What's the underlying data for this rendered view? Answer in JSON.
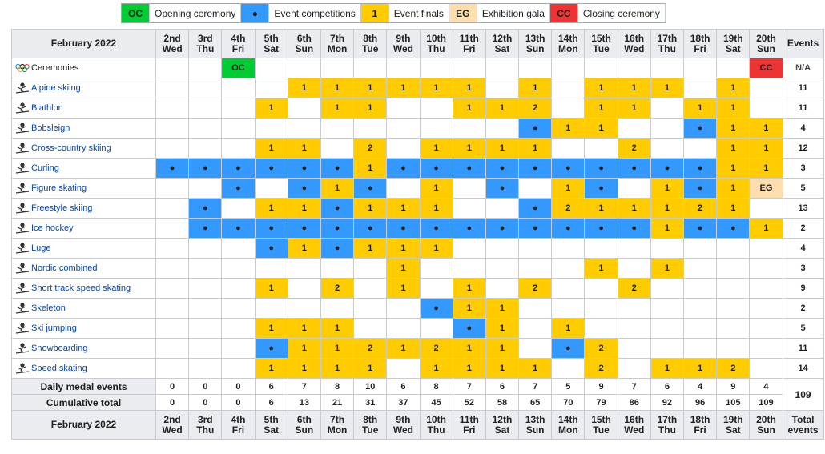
{
  "legend": [
    {
      "code": "OC",
      "text": "Opening ceremony",
      "color": "#00cc33"
    },
    {
      "code": "●",
      "text": "Event competitions",
      "color": "#3399ff"
    },
    {
      "code": "1",
      "text": "Event finals",
      "color": "#ffcc00"
    },
    {
      "code": "EG",
      "text": "Exhibition gala",
      "color": "#ffdead"
    },
    {
      "code": "CC",
      "text": "Closing ceremony",
      "color": "#ee3333"
    }
  ],
  "header": {
    "month_label": "February 2022",
    "events_label": "Events",
    "footer_events_label": "Total events",
    "days": [
      {
        "date": "2nd",
        "day": "Wed"
      },
      {
        "date": "3rd",
        "day": "Thu"
      },
      {
        "date": "4th",
        "day": "Fri"
      },
      {
        "date": "5th",
        "day": "Sat"
      },
      {
        "date": "6th",
        "day": "Sun"
      },
      {
        "date": "7th",
        "day": "Mon"
      },
      {
        "date": "8th",
        "day": "Tue"
      },
      {
        "date": "9th",
        "day": "Wed"
      },
      {
        "date": "10th",
        "day": "Thu"
      },
      {
        "date": "11th",
        "day": "Fri"
      },
      {
        "date": "12th",
        "day": "Sat"
      },
      {
        "date": "13th",
        "day": "Sun"
      },
      {
        "date": "14th",
        "day": "Mon"
      },
      {
        "date": "15th",
        "day": "Tue"
      },
      {
        "date": "16th",
        "day": "Wed"
      },
      {
        "date": "17th",
        "day": "Thu"
      },
      {
        "date": "18th",
        "day": "Fri"
      },
      {
        "date": "19th",
        "day": "Sat"
      },
      {
        "date": "20th",
        "day": "Sun"
      }
    ]
  },
  "rows": [
    {
      "sport": "Ceremonies",
      "icon": "olympic-rings-icon",
      "link": false,
      "cells": [
        "",
        "",
        "OC",
        "",
        "",
        "",
        "",
        "",
        "",
        "",
        "",
        "",
        "",
        "",
        "",
        "",
        "",
        "",
        "CC"
      ],
      "total": "N/A"
    },
    {
      "sport": "Alpine skiing",
      "icon": "alpine-skiing-icon",
      "link": true,
      "cells": [
        "",
        "",
        "",
        "",
        "1",
        "1",
        "1",
        "1",
        "1",
        "1",
        "",
        "1",
        "",
        "1",
        "1",
        "1",
        "",
        "1",
        ""
      ],
      "total": "11"
    },
    {
      "sport": "Biathlon",
      "icon": "biathlon-icon",
      "link": true,
      "cells": [
        "",
        "",
        "",
        "1",
        "",
        "1",
        "1",
        "",
        "",
        "1",
        "1",
        "2",
        "",
        "1",
        "1",
        "",
        "1",
        "1",
        ""
      ],
      "total": "11"
    },
    {
      "sport": "Bobsleigh",
      "icon": "bobsleigh-icon",
      "link": true,
      "cells": [
        "",
        "",
        "",
        "",
        "",
        "",
        "",
        "",
        "",
        "",
        "",
        "●",
        "1",
        "1",
        "",
        "",
        "●",
        "1",
        "1"
      ],
      "total": "4"
    },
    {
      "sport": "Cross-country skiing",
      "icon": "cross-country-skiing-icon",
      "link": true,
      "cells": [
        "",
        "",
        "",
        "1",
        "1",
        "",
        "2",
        "",
        "1",
        "1",
        "1",
        "1",
        "",
        "",
        "2",
        "",
        "",
        "1",
        "1"
      ],
      "total": "12"
    },
    {
      "sport": "Curling",
      "icon": "curling-icon",
      "link": true,
      "cells": [
        "●",
        "●",
        "●",
        "●",
        "●",
        "●",
        "1",
        "●",
        "●",
        "●",
        "●",
        "●",
        "●",
        "●",
        "●",
        "●",
        "●",
        "1",
        "1"
      ],
      "total": "3"
    },
    {
      "sport": "Figure skating",
      "icon": "figure-skating-icon",
      "link": true,
      "cells": [
        "",
        "",
        "●",
        "",
        "●",
        "1",
        "●",
        "",
        "1",
        "",
        "●",
        "",
        "1",
        "●",
        "",
        "1",
        "●",
        "1",
        "EG"
      ],
      "total": "5"
    },
    {
      "sport": "Freestyle skiing",
      "icon": "freestyle-skiing-icon",
      "link": true,
      "cells": [
        "",
        "●",
        "",
        "1",
        "1",
        "●",
        "1",
        "1",
        "1",
        "",
        "",
        "●",
        "2",
        "1",
        "1",
        "1",
        "2",
        "1",
        ""
      ],
      "total": "13"
    },
    {
      "sport": "Ice hockey",
      "icon": "ice-hockey-icon",
      "link": true,
      "cells": [
        "",
        "●",
        "●",
        "●",
        "●",
        "●",
        "●",
        "●",
        "●",
        "●",
        "●",
        "●",
        "●",
        "●",
        "●",
        "1",
        "●",
        "●",
        "1"
      ],
      "total": "2"
    },
    {
      "sport": "Luge",
      "icon": "luge-icon",
      "link": true,
      "cells": [
        "",
        "",
        "",
        "●",
        "1",
        "●",
        "1",
        "1",
        "1",
        "",
        "",
        "",
        "",
        "",
        "",
        "",
        "",
        "",
        ""
      ],
      "total": "4"
    },
    {
      "sport": "Nordic combined",
      "icon": "nordic-combined-icon",
      "link": true,
      "cells": [
        "",
        "",
        "",
        "",
        "",
        "",
        "",
        "1",
        "",
        "",
        "",
        "",
        "",
        "1",
        "",
        "1",
        "",
        "",
        ""
      ],
      "total": "3"
    },
    {
      "sport": "Short track speed skating",
      "icon": "short-track-icon",
      "link": true,
      "cells": [
        "",
        "",
        "",
        "1",
        "",
        "2",
        "",
        "1",
        "",
        "1",
        "",
        "2",
        "",
        "",
        "2",
        "",
        "",
        "",
        ""
      ],
      "total": "9"
    },
    {
      "sport": "Skeleton",
      "icon": "skeleton-icon",
      "link": true,
      "cells": [
        "",
        "",
        "",
        "",
        "",
        "",
        "",
        "",
        "●",
        "1",
        "1",
        "",
        "",
        "",
        "",
        "",
        "",
        "",
        ""
      ],
      "total": "2"
    },
    {
      "sport": "Ski jumping",
      "icon": "ski-jumping-icon",
      "link": true,
      "cells": [
        "",
        "",
        "",
        "1",
        "1",
        "1",
        "",
        "",
        "",
        "●",
        "1",
        "",
        "1",
        "",
        "",
        "",
        "",
        "",
        ""
      ],
      "total": "5"
    },
    {
      "sport": "Snowboarding",
      "icon": "snowboarding-icon",
      "link": true,
      "cells": [
        "",
        "",
        "",
        "●",
        "1",
        "1",
        "2",
        "1",
        "2",
        "1",
        "1",
        "",
        "●",
        "2",
        "",
        "",
        "",
        "",
        ""
      ],
      "total": "11"
    },
    {
      "sport": "Speed skating",
      "icon": "speed-skating-icon",
      "link": true,
      "cells": [
        "",
        "",
        "",
        "1",
        "1",
        "1",
        "1",
        "",
        "1",
        "1",
        "1",
        "1",
        "",
        "2",
        "",
        "1",
        "1",
        "2",
        ""
      ],
      "total": "14"
    }
  ],
  "daily": {
    "label": "Daily medal events",
    "values": [
      "0",
      "0",
      "0",
      "6",
      "7",
      "8",
      "10",
      "6",
      "8",
      "7",
      "6",
      "7",
      "5",
      "9",
      "7",
      "6",
      "4",
      "9",
      "4"
    ]
  },
  "cumulative": {
    "label": "Cumulative total",
    "values": [
      "0",
      "0",
      "0",
      "6",
      "13",
      "21",
      "31",
      "37",
      "45",
      "52",
      "58",
      "65",
      "70",
      "79",
      "86",
      "92",
      "96",
      "105",
      "109"
    ]
  },
  "grand_total": "109"
}
